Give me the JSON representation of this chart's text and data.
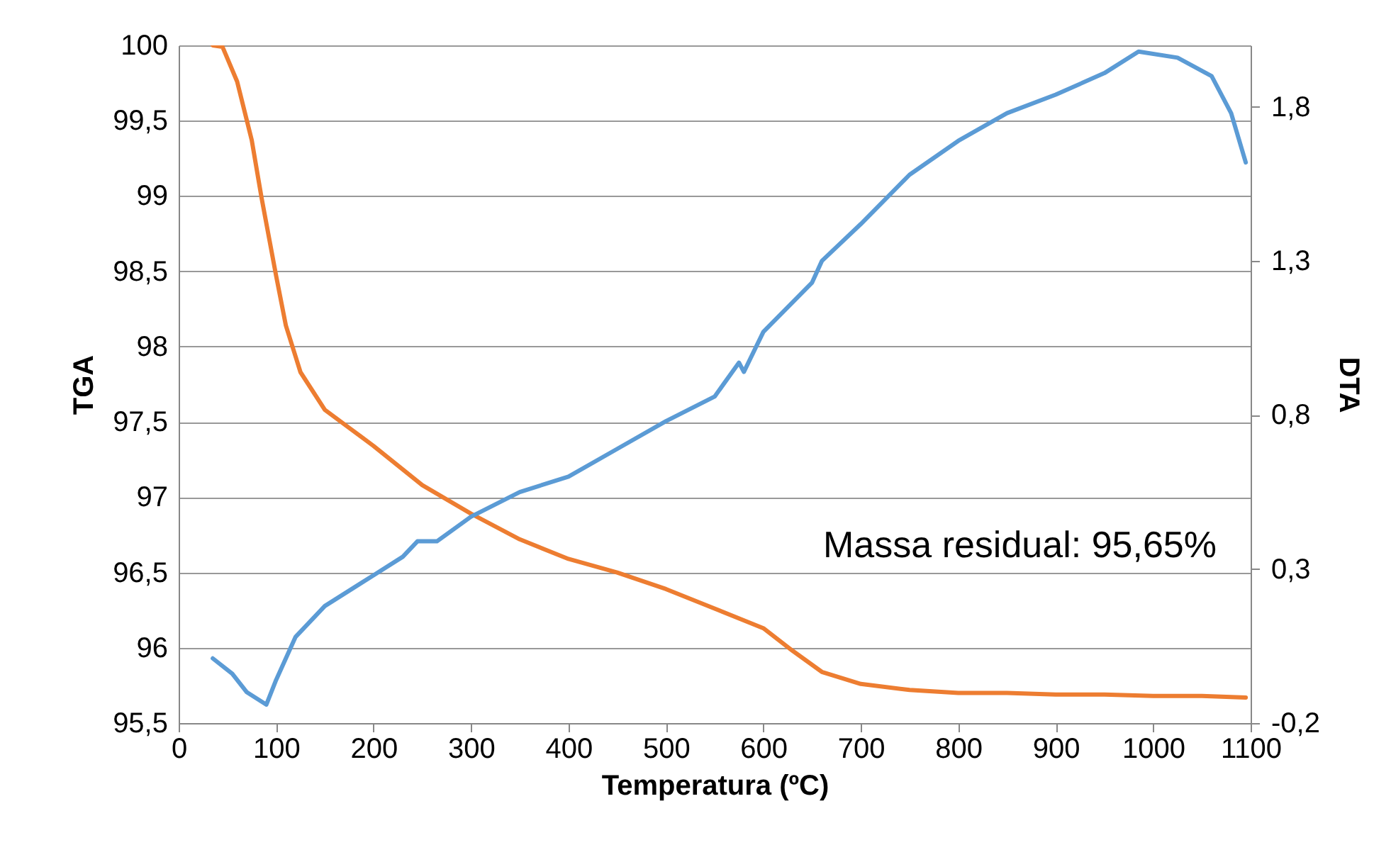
{
  "chart_data": {
    "type": "line",
    "xlabel": "Temperatura (ºC)",
    "ylabel": "TGA",
    "y2label": "DTA",
    "xlim": [
      0,
      1100
    ],
    "xticks": [
      0,
      100,
      200,
      300,
      400,
      500,
      600,
      700,
      800,
      900,
      1000,
      1100
    ],
    "ylim": [
      95.5,
      100
    ],
    "yticks": [
      {
        "value": 95.5,
        "label": "95,5"
      },
      96,
      {
        "value": 96.5,
        "label": "96,5"
      },
      97,
      {
        "value": 97.5,
        "label": "97,5"
      },
      98,
      {
        "value": 98.5,
        "label": "98,5"
      },
      99,
      {
        "value": 99.5,
        "label": "99,5"
      },
      100
    ],
    "y2lim": [
      -0.2,
      2.0
    ],
    "y2ticks": [
      {
        "value": -0.2,
        "label": "-0,2"
      },
      {
        "value": 0.3,
        "label": "0,3"
      },
      {
        "value": 0.8,
        "label": "0,8"
      },
      {
        "value": 1.3,
        "label": "1,3"
      },
      {
        "value": 1.8,
        "label": "1,8"
      }
    ],
    "grid": "y",
    "line_style": "solid",
    "marker": "none",
    "annotations": [
      "Massa residual: 95,65%"
    ],
    "series": [
      {
        "color": "#ed7d31",
        "x": [
          35,
          45,
          60,
          75,
          85,
          100,
          110,
          125,
          150,
          175,
          200,
          250,
          300,
          350,
          400,
          450,
          500,
          550,
          600,
          630,
          660,
          700,
          750,
          800,
          850,
          900,
          950,
          1000,
          1050,
          1095
        ],
        "values": [
          100.0,
          99.99,
          99.76,
          99.37,
          98.99,
          98.47,
          98.14,
          97.83,
          97.58,
          97.46,
          97.34,
          97.08,
          96.89,
          96.72,
          96.59,
          96.5,
          96.39,
          96.26,
          96.13,
          95.98,
          95.84,
          95.76,
          95.72,
          95.7,
          95.7,
          95.69,
          95.69,
          95.68,
          95.68,
          95.67
        ]
      },
      {
        "color": "#5b9bd5",
        "axis": "y2",
        "x": [
          35,
          55,
          70,
          80,
          90,
          100,
          120,
          150,
          200,
          230,
          245,
          265,
          300,
          350,
          400,
          450,
          500,
          550,
          575,
          580,
          600,
          650,
          660,
          700,
          750,
          800,
          850,
          900,
          950,
          985,
          1025,
          1060,
          1080,
          1095
        ],
        "values": [
          0.01,
          -0.04,
          -0.1,
          -0.12,
          -0.14,
          -0.06,
          0.08,
          0.18,
          0.28,
          0.34,
          0.39,
          0.39,
          0.47,
          0.55,
          0.6,
          0.69,
          0.78,
          0.86,
          0.97,
          0.94,
          1.07,
          1.23,
          1.3,
          1.42,
          1.58,
          1.69,
          1.78,
          1.84,
          1.91,
          1.98,
          1.96,
          1.9,
          1.78,
          1.62
        ]
      }
    ]
  }
}
